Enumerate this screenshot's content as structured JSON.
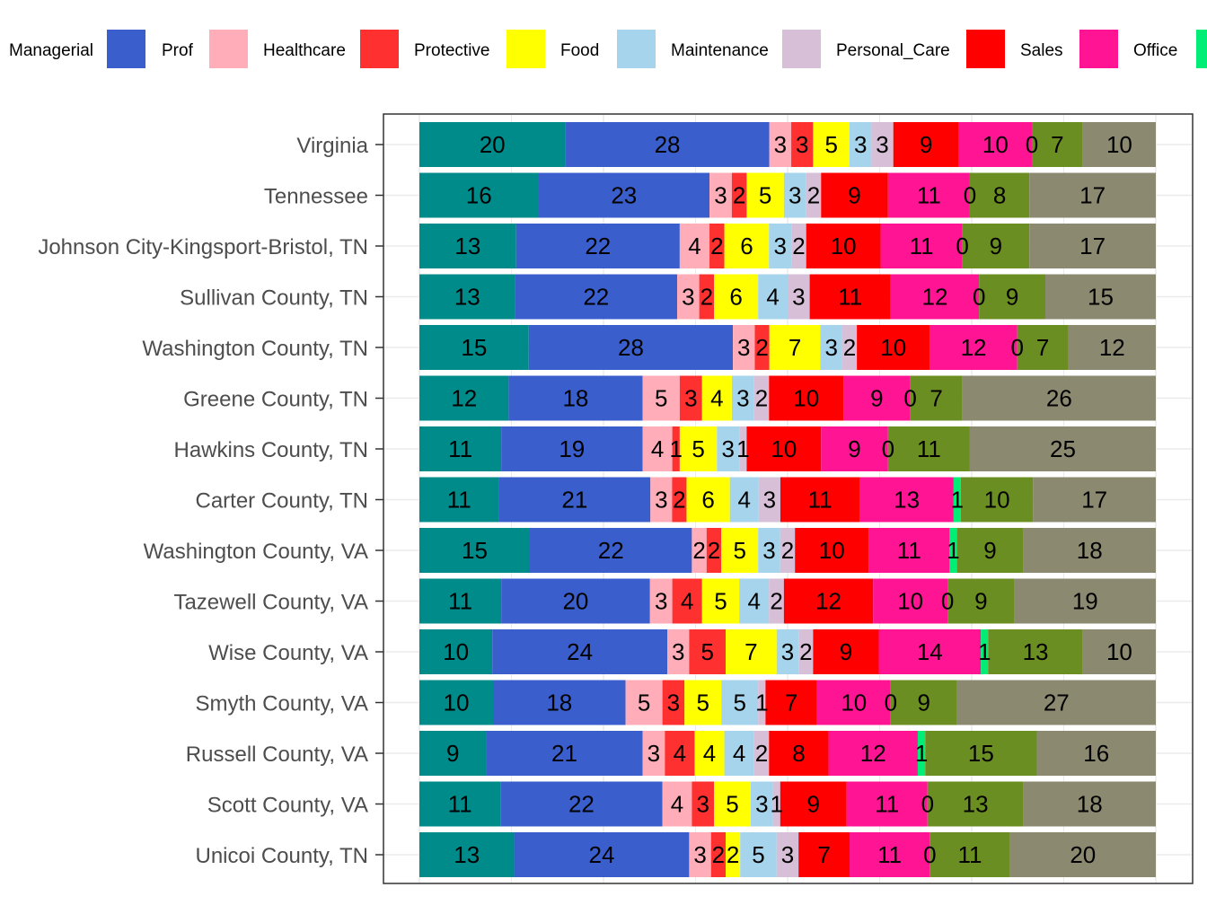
{
  "chart_data": {
    "type": "bar",
    "orientation": "horizontal",
    "stacked": true,
    "xlim": [
      0,
      100
    ],
    "legend_position": "top",
    "grid": true,
    "categories": [
      "Virginia",
      "Tennessee",
      "Johnson City-Kingsport-Bristol, TN",
      "Sullivan County, TN",
      "Washington County, TN",
      "Greene County, TN",
      "Hawkins County, TN",
      "Carter County, TN",
      "Washington County, VA",
      "Tazewell County, VA",
      "Wise County, VA",
      "Smyth County, VA",
      "Russell County, VA",
      "Scott County, VA",
      "Unicoi County, TN"
    ],
    "series": [
      {
        "name": "Managerial",
        "color": "#008B8B",
        "values": [
          20,
          16,
          13,
          13,
          15,
          12,
          11,
          11,
          15,
          11,
          10,
          10,
          9,
          11,
          13
        ]
      },
      {
        "name": "Prof",
        "color": "#3A5FCD",
        "values": [
          28,
          23,
          22,
          22,
          28,
          18,
          19,
          21,
          22,
          20,
          24,
          18,
          21,
          22,
          24
        ]
      },
      {
        "name": "Healthcare",
        "color": "#FFAEB9",
        "values": [
          3,
          3,
          4,
          3,
          3,
          5,
          4,
          3,
          2,
          3,
          3,
          5,
          3,
          4,
          3
        ]
      },
      {
        "name": "Protective",
        "color": "#FF3030",
        "values": [
          3,
          2,
          2,
          2,
          2,
          3,
          1,
          2,
          2,
          4,
          5,
          3,
          4,
          3,
          2
        ]
      },
      {
        "name": "Food",
        "color": "#FFFF00",
        "values": [
          5,
          5,
          6,
          6,
          7,
          4,
          5,
          6,
          5,
          5,
          7,
          5,
          4,
          5,
          2
        ]
      },
      {
        "name": "Maintenance",
        "color": "#A6D4EC",
        "values": [
          3,
          3,
          3,
          4,
          3,
          3,
          3,
          4,
          3,
          4,
          3,
          5,
          4,
          3,
          5
        ]
      },
      {
        "name": "Personal_Care",
        "color": "#D8BFD8",
        "values": [
          3,
          2,
          2,
          3,
          2,
          2,
          1,
          3,
          2,
          2,
          2,
          1,
          2,
          1,
          3
        ]
      },
      {
        "name": "Sales",
        "color": "#FF0000",
        "values": [
          9,
          9,
          10,
          11,
          10,
          10,
          10,
          11,
          10,
          12,
          9,
          7,
          8,
          9,
          7
        ]
      },
      {
        "name": "Office",
        "color": "#FF1493",
        "values": [
          10,
          11,
          11,
          12,
          12,
          9,
          9,
          13,
          11,
          10,
          14,
          10,
          12,
          11,
          11
        ]
      },
      {
        "name": "",
        "color": "#00EE76",
        "values": [
          0,
          0,
          0,
          0,
          0,
          0,
          0,
          1,
          1,
          0,
          1,
          0,
          1,
          0,
          0
        ]
      },
      {
        "name": "",
        "color": "#6B8E23",
        "values": [
          7,
          8,
          9,
          9,
          7,
          7,
          11,
          10,
          9,
          9,
          13,
          9,
          15,
          13,
          11
        ]
      },
      {
        "name": "",
        "color": "#8B8970",
        "values": [
          10,
          17,
          17,
          15,
          12,
          26,
          25,
          17,
          18,
          19,
          10,
          27,
          16,
          18,
          20
        ]
      }
    ]
  }
}
